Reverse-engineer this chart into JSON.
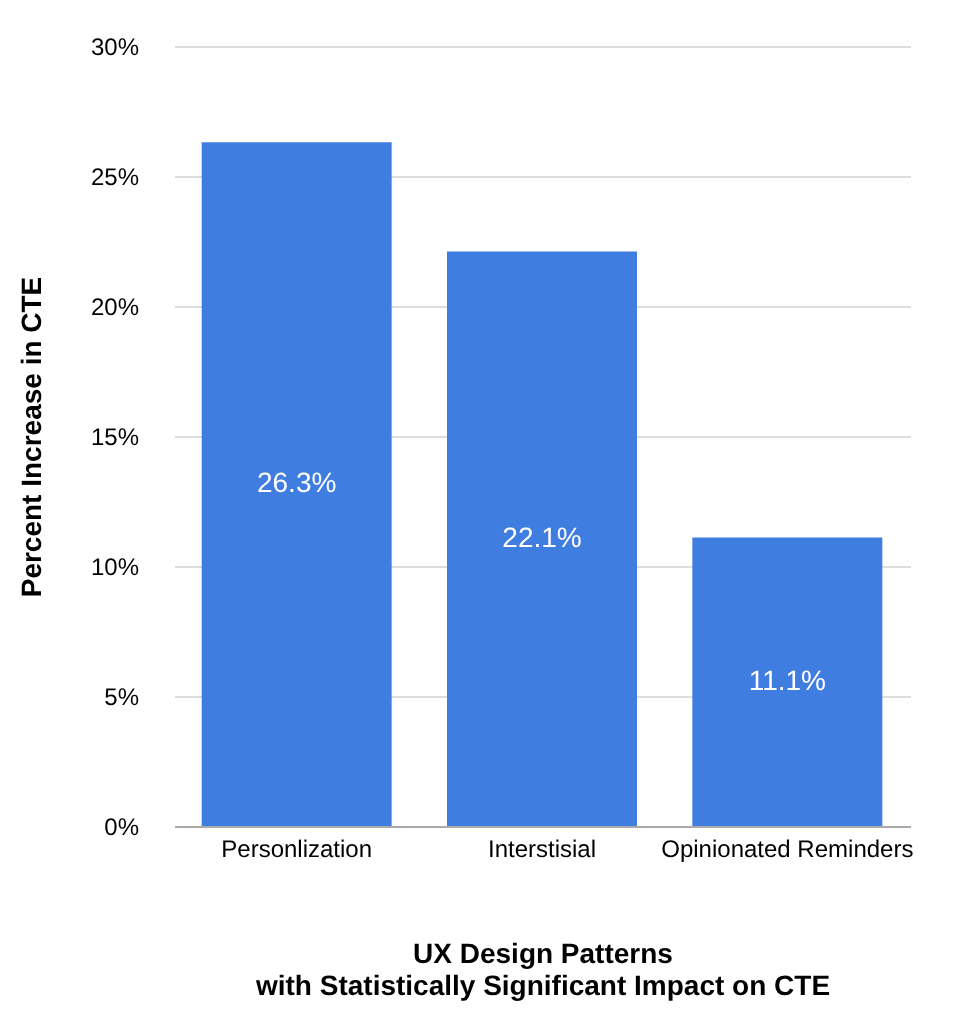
{
  "chart_data": {
    "type": "bar",
    "categories": [
      "Personlization",
      "Interstisial",
      "Opinionated Reminders"
    ],
    "values": [
      26.3,
      22.1,
      11.1
    ],
    "value_labels": [
      "26.3%",
      "22.1%",
      "11.1%"
    ],
    "color": "#3f7de0",
    "ylabel": "Percent Increase in CTE",
    "xlabel": "UX Design Patterns\nwith Statistically Significant Impact on CTE",
    "ylim": [
      0,
      30
    ],
    "yticks": [
      {
        "value": 0,
        "label": "0%"
      },
      {
        "value": 5,
        "label": "5%"
      },
      {
        "value": 10,
        "label": "10%"
      },
      {
        "value": 15,
        "label": "15%"
      },
      {
        "value": 20,
        "label": "20%"
      },
      {
        "value": 25,
        "label": "25%"
      },
      {
        "value": 30,
        "label": "30%"
      }
    ],
    "grid": "y"
  }
}
